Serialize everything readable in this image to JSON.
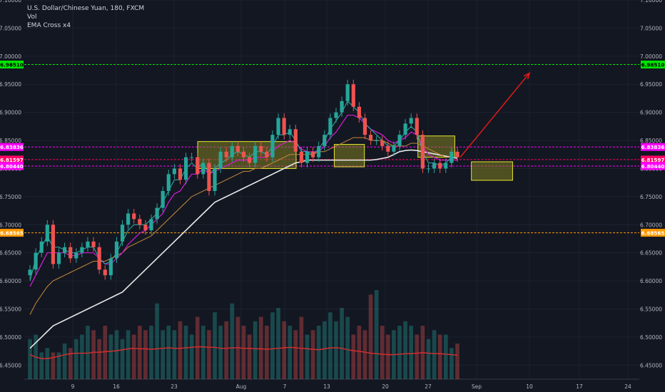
{
  "chart_data": {
    "type": "candlestick",
    "title": "U.S. Dollar/Chinese Yuan, 180, FXCM",
    "indicators": [
      "Vol",
      "EMA Cross x4"
    ],
    "ylim": [
      6.425,
      7.1
    ],
    "y_ticks": [
      "7.10000",
      "7.05000",
      "7.00000",
      "6.95000",
      "6.90000",
      "6.85000",
      "6.80000",
      "6.75000",
      "6.70000",
      "6.65000",
      "6.60000",
      "6.55000",
      "6.50000",
      "6.45000"
    ],
    "x_ticks": [
      "9",
      "16",
      "23",
      "Aug",
      "7",
      "13",
      "20",
      "27",
      "Sep",
      "10",
      "17",
      "24"
    ],
    "price_labels": [
      {
        "value": 6.9851,
        "text": "6.98510",
        "color": "#00e600"
      },
      {
        "value": 6.83836,
        "text": "6.83836",
        "color": "#ff00ff"
      },
      {
        "value": 6.81597,
        "text": "6.81597",
        "color": "#ff0066"
      },
      {
        "value": 6.8044,
        "text": "6.80440",
        "color": "#ff00ff"
      },
      {
        "value": 6.68565,
        "text": "6.68565",
        "color": "#ff9900"
      }
    ],
    "prices": [
      6.62,
      6.65,
      6.67,
      6.7,
      6.63,
      6.65,
      6.66,
      6.64,
      6.65,
      6.66,
      6.67,
      6.66,
      6.62,
      6.61,
      6.64,
      6.67,
      6.7,
      6.72,
      6.71,
      6.7,
      6.69,
      6.71,
      6.73,
      6.76,
      6.79,
      6.8,
      6.78,
      6.82,
      6.82,
      6.79,
      6.81,
      6.76,
      6.8,
      6.83,
      6.82,
      6.84,
      6.83,
      6.82,
      6.81,
      6.84,
      6.83,
      6.82,
      6.86,
      6.89,
      6.86,
      6.87,
      6.83,
      6.81,
      6.83,
      6.82,
      6.84,
      6.86,
      6.89,
      6.9,
      6.92,
      6.95,
      6.91,
      6.89,
      6.86,
      6.85,
      6.85,
      6.84,
      6.83,
      6.84,
      6.86,
      6.88,
      6.89,
      6.86,
      6.8,
      6.8,
      6.81,
      6.8,
      6.81,
      6.83,
      6.82
    ],
    "volumes": [
      0.45,
      0.5,
      0.3,
      0.35,
      0.3,
      0.3,
      0.4,
      0.35,
      0.45,
      0.5,
      0.6,
      0.55,
      0.45,
      0.6,
      0.5,
      0.55,
      0.45,
      0.55,
      0.5,
      0.6,
      0.55,
      0.6,
      0.85,
      0.55,
      0.6,
      0.55,
      0.65,
      0.6,
      0.5,
      0.7,
      0.6,
      0.55,
      0.75,
      0.6,
      0.65,
      0.85,
      0.7,
      0.6,
      0.5,
      0.65,
      0.7,
      0.6,
      0.75,
      0.8,
      0.65,
      0.6,
      0.55,
      0.7,
      0.5,
      0.55,
      0.6,
      0.65,
      0.75,
      0.65,
      0.8,
      0.7,
      0.5,
      0.6,
      0.55,
      0.95,
      1.0,
      0.6,
      0.5,
      0.55,
      0.6,
      0.65,
      0.6,
      0.5,
      0.6,
      0.45,
      0.55,
      0.5,
      0.5,
      0.35,
      0.4
    ],
    "volume_ma": [
      0.5,
      0.45,
      0.42,
      0.42,
      0.44,
      0.47,
      0.5,
      0.52,
      0.53,
      0.53,
      0.53,
      0.55,
      0.55,
      0.56,
      0.57,
      0.58,
      0.6,
      0.62,
      0.63,
      0.62,
      0.62,
      0.61,
      0.62,
      0.63,
      0.64,
      0.63,
      0.63,
      0.64,
      0.65,
      0.66,
      0.66,
      0.65,
      0.65,
      0.63,
      0.63,
      0.64,
      0.64,
      0.63,
      0.63,
      0.62,
      0.62,
      0.61,
      0.62,
      0.63,
      0.64,
      0.65,
      0.64,
      0.63,
      0.62,
      0.61,
      0.6,
      0.62,
      0.64,
      0.64,
      0.63,
      0.6,
      0.58,
      0.57,
      0.55,
      0.53,
      0.52,
      0.51,
      0.5,
      0.5,
      0.51,
      0.52,
      0.52,
      0.53,
      0.54,
      0.53,
      0.52,
      0.52,
      0.51,
      0.5,
      0.49
    ],
    "ema_fast": [
      6.6,
      6.64,
      6.66,
      6.68,
      6.66,
      6.66,
      6.655,
      6.65,
      6.65,
      6.655,
      6.66,
      6.66,
      6.64,
      6.63,
      6.635,
      6.65,
      6.67,
      6.69,
      6.7,
      6.7,
      6.7,
      6.71,
      6.72,
      6.74,
      6.76,
      6.78,
      6.78,
      6.8,
      6.81,
      6.8,
      6.81,
      6.79,
      6.8,
      6.81,
      6.815,
      6.825,
      6.83,
      6.825,
      6.82,
      6.83,
      6.83,
      6.825,
      6.84,
      6.86,
      6.86,
      6.865,
      6.85,
      6.83,
      6.83,
      6.825,
      6.835,
      6.85,
      6.87,
      6.885,
      6.9,
      6.92,
      6.91,
      6.9,
      6.88,
      6.87,
      6.86,
      6.85,
      6.84,
      6.84,
      6.85,
      6.865,
      6.875,
      6.865,
      6.83,
      6.81,
      6.81,
      6.805,
      6.81,
      6.82,
      6.82
    ],
    "ema_mid": [
      6.59,
      6.61,
      6.63,
      6.65,
      6.65,
      6.65,
      6.65,
      6.645,
      6.645,
      6.65,
      6.65,
      6.65,
      6.64,
      6.63,
      6.63,
      6.64,
      6.65,
      6.665,
      6.675,
      6.685,
      6.69,
      6.7,
      6.71,
      6.72,
      6.74,
      6.755,
      6.76,
      6.775,
      6.79,
      6.79,
      6.8,
      6.79,
      6.795,
      6.8,
      6.805,
      6.81,
      6.815,
      6.815,
      6.815,
      6.82,
      6.82,
      6.82,
      6.83,
      6.84,
      6.845,
      6.85,
      6.845,
      6.835,
      6.83,
      6.83,
      6.83,
      6.84,
      6.855,
      6.865,
      6.88,
      6.895,
      6.895,
      6.89,
      6.88,
      6.87,
      6.865,
      6.86,
      6.85,
      6.845,
      6.85,
      6.855,
      6.865,
      6.86,
      6.84,
      6.825,
      6.82,
      6.815,
      6.815,
      6.815,
      6.815
    ],
    "ema_slow": [
      6.54,
      6.56,
      6.575,
      6.59,
      6.6,
      6.605,
      6.61,
      6.615,
      6.62,
      6.625,
      6.63,
      6.635,
      6.635,
      6.635,
      6.64,
      6.645,
      6.65,
      6.66,
      6.665,
      6.67,
      6.675,
      6.68,
      6.69,
      6.7,
      6.71,
      6.72,
      6.73,
      6.74,
      6.75,
      6.755,
      6.76,
      6.765,
      6.77,
      6.775,
      6.78,
      6.785,
      6.79,
      6.795,
      6.795,
      6.8,
      6.8,
      6.805,
      6.81,
      6.815,
      6.82,
      6.825,
      6.825,
      6.825,
      6.825,
      6.825,
      6.83,
      6.83,
      6.835,
      6.84,
      6.845,
      6.85,
      6.855,
      6.855,
      6.855,
      6.85,
      6.85,
      6.85,
      6.845,
      6.84,
      6.84,
      6.84,
      6.845,
      6.845,
      6.84,
      6.835,
      6.83,
      6.825,
      6.82,
      6.82,
      6.82
    ],
    "ema_long": [
      6.48,
      6.49,
      6.5,
      6.51,
      6.52,
      6.525,
      6.53,
      6.535,
      6.54,
      6.545,
      6.55,
      6.555,
      6.56,
      6.565,
      6.57,
      6.575,
      6.58,
      6.59,
      6.6,
      6.61,
      6.62,
      6.63,
      6.64,
      6.65,
      6.66,
      6.67,
      6.68,
      6.69,
      6.7,
      6.71,
      6.72,
      6.73,
      6.74,
      6.745,
      6.75,
      6.755,
      6.76,
      6.765,
      6.77,
      6.775,
      6.78,
      6.785,
      6.79,
      6.795,
      6.8,
      6.805,
      6.81,
      6.812,
      6.815,
      6.815,
      6.815,
      6.815,
      6.815,
      6.815,
      6.815,
      6.815,
      6.815,
      6.815,
      6.815,
      6.815,
      6.816,
      6.818,
      6.82,
      6.825,
      6.83,
      6.832,
      6.833,
      6.832,
      6.83,
      6.828,
      6.826,
      6.824,
      6.822,
      6.82,
      6.818
    ],
    "boxes": [
      {
        "x0": 0.282,
        "x1": 0.442,
        "y0": 6.8,
        "y1": 6.848
      },
      {
        "x0": 0.504,
        "x1": 0.553,
        "y0": 6.803,
        "y1": 6.843
      },
      {
        "x0": 0.64,
        "x1": 0.7,
        "y0": 6.82,
        "y1": 6.858
      },
      {
        "x0": 0.727,
        "x1": 0.794,
        "y0": 6.779,
        "y1": 6.812
      }
    ],
    "arrow": {
      "from": {
        "t": 1.0,
        "v": 6.82
      },
      "to": {
        "t": 1.16,
        "v": 6.97
      }
    },
    "colors": {
      "background": "#131722",
      "up": "#26a69a",
      "down": "#ef5350",
      "ema_fast": "#2fb3a7",
      "ema_mid": "#d81bd8",
      "ema_slow": "#c58a3b",
      "ema_long": "#e8e8e8",
      "volume_ma": "#d32f2f",
      "box_fill": "#7f7f20",
      "box_stroke": "#e6e62e",
      "arrow": "#e01a1a"
    }
  }
}
